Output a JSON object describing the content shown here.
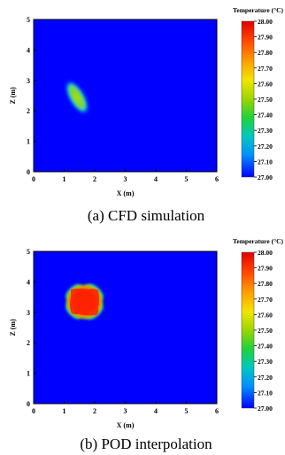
{
  "chart_data": [
    {
      "type": "heatmap",
      "caption": "(a) CFD simulation",
      "xlabel": "X (m)",
      "ylabel": "Z (m)",
      "xlim": [
        0,
        6
      ],
      "ylim": [
        0,
        5
      ],
      "x_ticks": [
        "0",
        "1",
        "2",
        "3",
        "4",
        "5",
        "6"
      ],
      "y_ticks": [
        "0",
        "1",
        "2",
        "3",
        "4",
        "5"
      ],
      "colorbar": {
        "title": "Temperature (°C)",
        "min": 27.0,
        "max": 28.0,
        "ticks": [
          "28.00",
          "27.90",
          "27.80",
          "27.70",
          "27.60",
          "27.50",
          "27.40",
          "27.30",
          "27.20",
          "27.10",
          "27.00"
        ]
      },
      "background_value": 27.0,
      "hot_region": {
        "shape": "tilted-ellipse",
        "center_x": 1.4,
        "center_z": 2.45,
        "peak_value": 27.7
      }
    },
    {
      "type": "heatmap",
      "caption": "(b) POD interpolation",
      "xlabel": "X (m)",
      "ylabel": "Z (m)",
      "xlim": [
        0,
        6
      ],
      "ylim": [
        0,
        5
      ],
      "x_ticks": [
        "0",
        "1",
        "2",
        "3",
        "4",
        "5",
        "6"
      ],
      "y_ticks": [
        "0",
        "1",
        "2",
        "3",
        "4",
        "5"
      ],
      "colorbar": {
        "title": "Temperature (°C)",
        "min": 27.0,
        "max": 28.0,
        "ticks": [
          "28.00",
          "27.90",
          "27.80",
          "27.70",
          "27.60",
          "27.50",
          "27.40",
          "27.30",
          "27.20",
          "27.10",
          "27.00"
        ]
      },
      "background_value": 27.0,
      "hot_region": {
        "shape": "rounded-square",
        "x_range": [
          1.0,
          2.2
        ],
        "z_range": [
          1.9,
          3.0
        ],
        "peak_value": 28.0
      }
    }
  ]
}
